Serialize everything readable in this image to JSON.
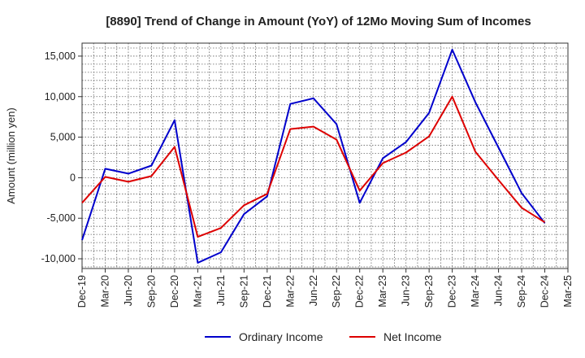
{
  "chart_data": {
    "type": "line",
    "title": "[8890]  Trend of Change in Amount (YoY) of 12Mo Moving Sum of Incomes",
    "ylabel": "Amount (million yen)",
    "xlabel": "",
    "ylim": [
      -11200,
      16600
    ],
    "yticks": [
      -10000,
      -5000,
      0,
      5000,
      10000,
      15000
    ],
    "ytick_labels": [
      "-10,000",
      "-5,000",
      "0",
      "5,000",
      "10,000",
      "15,000"
    ],
    "categories": [
      "Dec-19",
      "Mar-20",
      "Jun-20",
      "Sep-20",
      "Dec-20",
      "Mar-21",
      "Jun-21",
      "Sep-21",
      "Dec-21",
      "Mar-22",
      "Jun-22",
      "Sep-22",
      "Dec-22",
      "Mar-23",
      "Jun-23",
      "Sep-23",
      "Dec-23",
      "Mar-24",
      "Jun-24",
      "Sep-24",
      "Dec-24",
      "Mar-25"
    ],
    "series": [
      {
        "name": "Ordinary Income",
        "color": "#0000cc",
        "values": [
          -7700,
          1100,
          500,
          1500,
          7100,
          -10500,
          -9200,
          -4500,
          -2300,
          9100,
          9800,
          6600,
          -3100,
          2400,
          4400,
          8000,
          15800,
          9300,
          3700,
          -1900,
          -5600,
          null
        ]
      },
      {
        "name": "Net Income",
        "color": "#dd0000",
        "values": [
          -3100,
          100,
          -500,
          200,
          3800,
          -7300,
          -6200,
          -3400,
          -2000,
          6000,
          6300,
          4700,
          -1600,
          1800,
          3100,
          5100,
          10000,
          3200,
          -300,
          -3700,
          -5500,
          null
        ]
      }
    ],
    "grid": true,
    "legend_position": "bottom"
  }
}
